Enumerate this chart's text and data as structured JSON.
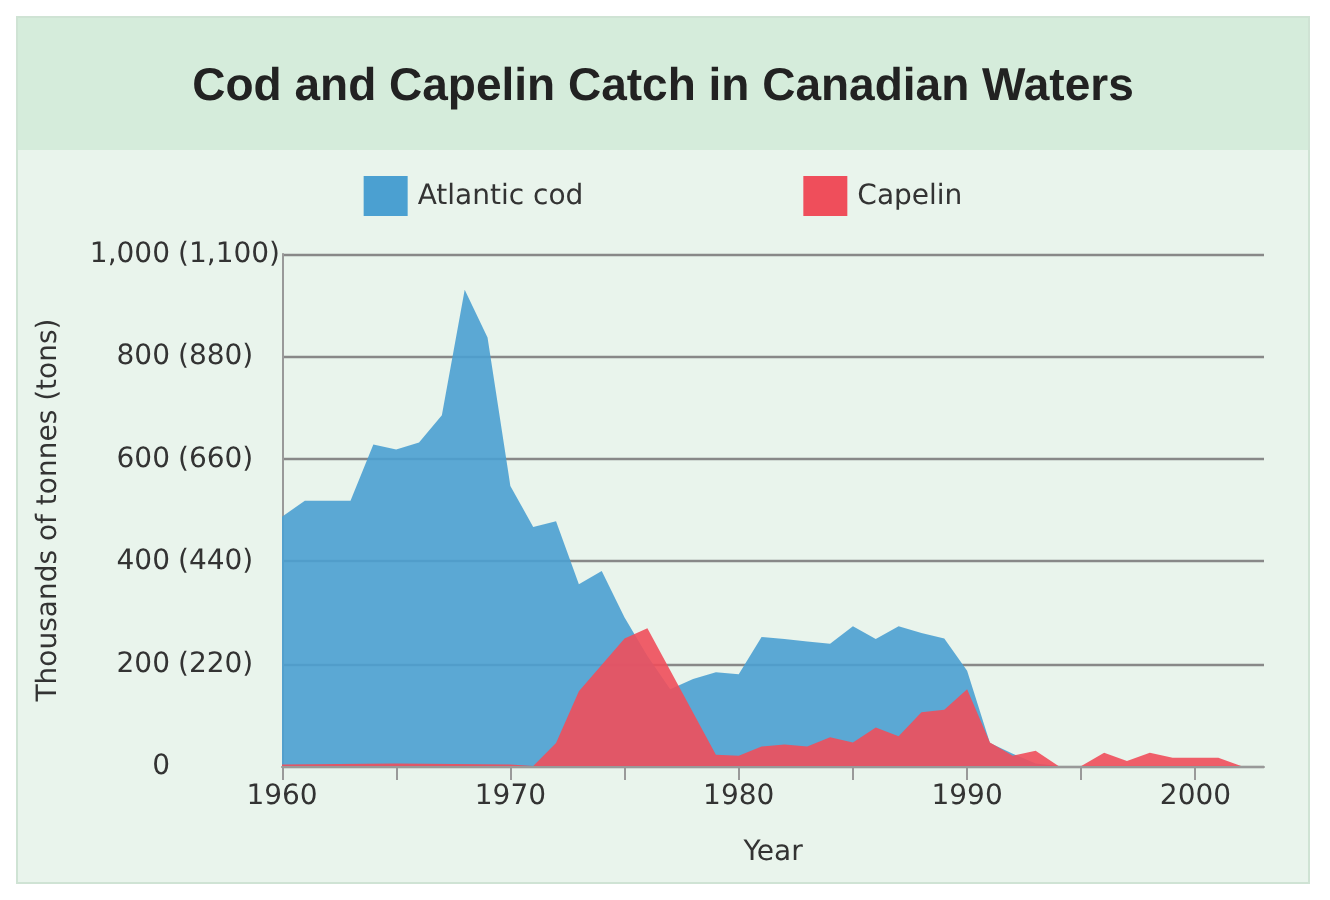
{
  "chart_data": {
    "type": "area",
    "title": "Cod and Capelin Catch in Canadian Waters",
    "xlabel": "Year",
    "ylabel": "Thousands of tonnes (tons)",
    "xlim": [
      1960,
      2003
    ],
    "xticks": [
      1960,
      {
        "value": 1965,
        "label": null
      },
      1970,
      {
        "value": 1975,
        "label": null
      },
      1980,
      {
        "value": 1985,
        "label": null
      },
      1990,
      {
        "value": 1995,
        "label": null
      },
      2000
    ],
    "ylim": [
      0,
      1000
    ],
    "yticks": [
      0,
      200,
      400,
      600,
      800,
      {
        "value": 1000,
        "label": "1,000"
      }
    ],
    "y2lim": [
      0,
      1100
    ],
    "y2ticks": [
      {
        "value": 220,
        "label": "(220)"
      },
      {
        "value": 440,
        "label": "(440)"
      },
      {
        "value": 660,
        "label": "(660)"
      },
      {
        "value": 880,
        "label": "(880)"
      },
      {
        "value": 1100,
        "label": "(1,100)"
      }
    ],
    "grid": "y",
    "legend": "top",
    "series": [
      {
        "name": "Atlantic cod",
        "color": "#4ba0d1",
        "x": [
          1960,
          1961,
          1962,
          1963,
          1964,
          1965,
          1966,
          1967,
          1968,
          1969,
          1970,
          1971,
          1972,
          1973,
          1974,
          1975,
          1976,
          1977,
          1978,
          1979,
          1980,
          1981,
          1982,
          1983,
          1984,
          1985,
          1986,
          1987,
          1988,
          1989,
          1990,
          1991,
          1992,
          1993,
          1994
        ],
        "values": [
          487,
          518,
          518,
          518,
          628,
          618,
          632,
          685,
          930,
          837,
          547,
          467,
          478,
          355,
          381,
          290,
          215,
          150,
          170,
          183,
          179,
          252,
          248,
          243,
          239,
          273,
          248,
          273,
          260,
          249,
          186,
          45,
          24,
          5,
          0
        ]
      },
      {
        "name": "Capelin",
        "color": "#ef4e5b",
        "x": [
          1960,
          1965,
          1970,
          1971,
          1972,
          1973,
          1975,
          1976,
          1979,
          1980,
          1981,
          1982,
          1983,
          1984,
          1985,
          1986,
          1987,
          1988,
          1989,
          1990,
          1991,
          1992,
          1993,
          1994,
          1995,
          1996,
          1997,
          1998,
          1999,
          2001,
          2002
        ],
        "values": [
          3,
          5,
          3,
          0,
          45,
          146,
          249,
          269,
          22,
          20,
          38,
          42,
          38,
          56,
          46,
          75,
          58,
          105,
          110,
          150,
          46,
          20,
          30,
          0,
          0,
          26,
          10,
          26,
          16,
          16,
          0
        ]
      }
    ]
  }
}
